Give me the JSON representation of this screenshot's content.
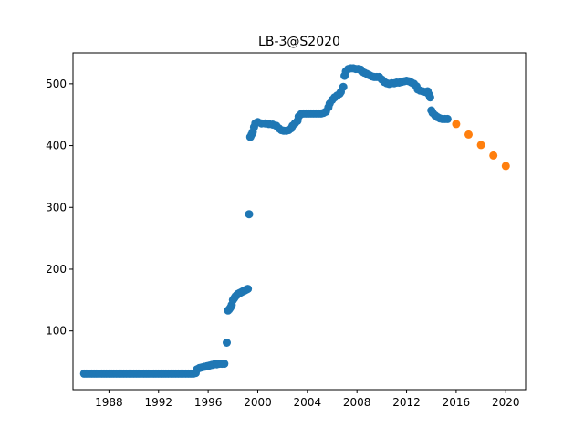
{
  "chart_data": {
    "type": "scatter",
    "title": "LB-3@S2020",
    "xlabel": "",
    "ylabel": "",
    "xlim": [
      1985.1,
      2021.6
    ],
    "ylim": [
      5,
      550
    ],
    "x_ticks": [
      1988,
      1992,
      1996,
      2000,
      2004,
      2008,
      2012,
      2016,
      2020
    ],
    "y_ticks": [
      100,
      200,
      300,
      400,
      500
    ],
    "grid": false,
    "legend": "none",
    "series": [
      {
        "color": "#1f77b4",
        "points": [
          [
            1986.0,
            31
          ],
          [
            1986.2,
            31
          ],
          [
            1986.4,
            31
          ],
          [
            1986.6,
            31
          ],
          [
            1986.8,
            31
          ],
          [
            1987.0,
            31
          ],
          [
            1987.2,
            31
          ],
          [
            1987.4,
            31
          ],
          [
            1987.6,
            31
          ],
          [
            1987.8,
            31
          ],
          [
            1988.0,
            31
          ],
          [
            1988.2,
            31
          ],
          [
            1988.4,
            31
          ],
          [
            1988.6,
            31
          ],
          [
            1988.8,
            31
          ],
          [
            1989.0,
            31
          ],
          [
            1989.2,
            31
          ],
          [
            1989.4,
            31
          ],
          [
            1989.6,
            31
          ],
          [
            1989.8,
            31
          ],
          [
            1990.0,
            31
          ],
          [
            1990.2,
            31
          ],
          [
            1990.4,
            31
          ],
          [
            1990.6,
            31
          ],
          [
            1990.8,
            31
          ],
          [
            1991.0,
            31
          ],
          [
            1991.2,
            31
          ],
          [
            1991.4,
            31
          ],
          [
            1991.6,
            31
          ],
          [
            1991.8,
            31
          ],
          [
            1992.0,
            31
          ],
          [
            1992.2,
            31
          ],
          [
            1992.4,
            31
          ],
          [
            1992.6,
            31
          ],
          [
            1992.8,
            31
          ],
          [
            1993.0,
            31
          ],
          [
            1993.2,
            31
          ],
          [
            1993.4,
            31
          ],
          [
            1993.6,
            31
          ],
          [
            1993.8,
            31
          ],
          [
            1994.0,
            31
          ],
          [
            1994.2,
            31
          ],
          [
            1994.4,
            31
          ],
          [
            1994.6,
            31
          ],
          [
            1994.8,
            31
          ],
          [
            1995.0,
            32
          ],
          [
            1995.1,
            38
          ],
          [
            1995.3,
            40
          ],
          [
            1995.5,
            41
          ],
          [
            1995.7,
            42
          ],
          [
            1995.9,
            43
          ],
          [
            1996.1,
            44
          ],
          [
            1996.3,
            45
          ],
          [
            1996.5,
            46
          ],
          [
            1996.7,
            46
          ],
          [
            1996.9,
            47
          ],
          [
            1997.1,
            47
          ],
          [
            1997.3,
            47
          ],
          [
            1997.5,
            81
          ],
          [
            1997.6,
            133
          ],
          [
            1997.7,
            135
          ],
          [
            1997.8,
            138
          ],
          [
            1997.9,
            142
          ],
          [
            1998.0,
            150
          ],
          [
            1998.1,
            153
          ],
          [
            1998.2,
            156
          ],
          [
            1998.3,
            158
          ],
          [
            1998.4,
            160
          ],
          [
            1998.5,
            161
          ],
          [
            1998.6,
            162
          ],
          [
            1998.7,
            163
          ],
          [
            1998.8,
            164
          ],
          [
            1998.9,
            165
          ],
          [
            1999.0,
            166
          ],
          [
            1999.1,
            167
          ],
          [
            1999.2,
            168
          ],
          [
            1999.3,
            289
          ],
          [
            1999.4,
            414
          ],
          [
            1999.5,
            418
          ],
          [
            1999.6,
            422
          ],
          [
            1999.7,
            430
          ],
          [
            1999.8,
            436
          ],
          [
            1999.9,
            437
          ],
          [
            2000.0,
            438
          ],
          [
            2000.3,
            436
          ],
          [
            2000.6,
            436
          ],
          [
            2000.9,
            435
          ],
          [
            2001.2,
            434
          ],
          [
            2001.5,
            432
          ],
          [
            2001.7,
            428
          ],
          [
            2001.9,
            425
          ],
          [
            2002.1,
            424
          ],
          [
            2002.3,
            424
          ],
          [
            2002.5,
            425
          ],
          [
            2002.7,
            428
          ],
          [
            2002.8,
            432
          ],
          [
            2003.0,
            436
          ],
          [
            2003.2,
            440
          ],
          [
            2003.3,
            447
          ],
          [
            2003.5,
            451
          ],
          [
            2003.7,
            452
          ],
          [
            2003.9,
            452
          ],
          [
            2004.1,
            452
          ],
          [
            2004.3,
            452
          ],
          [
            2004.5,
            452
          ],
          [
            2004.7,
            452
          ],
          [
            2004.9,
            452
          ],
          [
            2005.1,
            452
          ],
          [
            2005.3,
            453
          ],
          [
            2005.5,
            455
          ],
          [
            2005.7,
            462
          ],
          [
            2005.8,
            468
          ],
          [
            2006.0,
            474
          ],
          [
            2006.2,
            478
          ],
          [
            2006.4,
            481
          ],
          [
            2006.6,
            484
          ],
          [
            2006.7,
            487
          ],
          [
            2006.9,
            495
          ],
          [
            2007.0,
            513
          ],
          [
            2007.1,
            520
          ],
          [
            2007.3,
            524
          ],
          [
            2007.5,
            525
          ],
          [
            2007.7,
            525
          ],
          [
            2007.9,
            524
          ],
          [
            2008.1,
            524
          ],
          [
            2008.3,
            523
          ],
          [
            2008.4,
            520
          ],
          [
            2008.6,
            518
          ],
          [
            2008.8,
            516
          ],
          [
            2009.0,
            514
          ],
          [
            2009.2,
            512
          ],
          [
            2009.4,
            511
          ],
          [
            2009.6,
            511
          ],
          [
            2009.8,
            511
          ],
          [
            2010.0,
            507
          ],
          [
            2010.2,
            503
          ],
          [
            2010.4,
            501
          ],
          [
            2010.6,
            500
          ],
          [
            2010.8,
            501
          ],
          [
            2011.0,
            501
          ],
          [
            2011.2,
            502
          ],
          [
            2011.4,
            502
          ],
          [
            2011.6,
            503
          ],
          [
            2011.8,
            504
          ],
          [
            2012.0,
            505
          ],
          [
            2012.2,
            504
          ],
          [
            2012.4,
            502
          ],
          [
            2012.6,
            500
          ],
          [
            2012.8,
            496
          ],
          [
            2012.9,
            491
          ],
          [
            2013.1,
            489
          ],
          [
            2013.3,
            488
          ],
          [
            2013.5,
            487
          ],
          [
            2013.7,
            488
          ],
          [
            2013.8,
            483
          ],
          [
            2013.9,
            478
          ],
          [
            2014.0,
            457
          ],
          [
            2014.1,
            453
          ],
          [
            2014.3,
            449
          ],
          [
            2014.5,
            446
          ],
          [
            2014.7,
            444
          ],
          [
            2014.9,
            443
          ],
          [
            2015.1,
            443
          ],
          [
            2015.3,
            443
          ]
        ]
      },
      {
        "color": "#ff7f0e",
        "points": [
          [
            2016.0,
            435
          ],
          [
            2017.0,
            418
          ],
          [
            2018.0,
            401
          ],
          [
            2019.0,
            384
          ],
          [
            2020.0,
            367
          ]
        ]
      }
    ]
  }
}
